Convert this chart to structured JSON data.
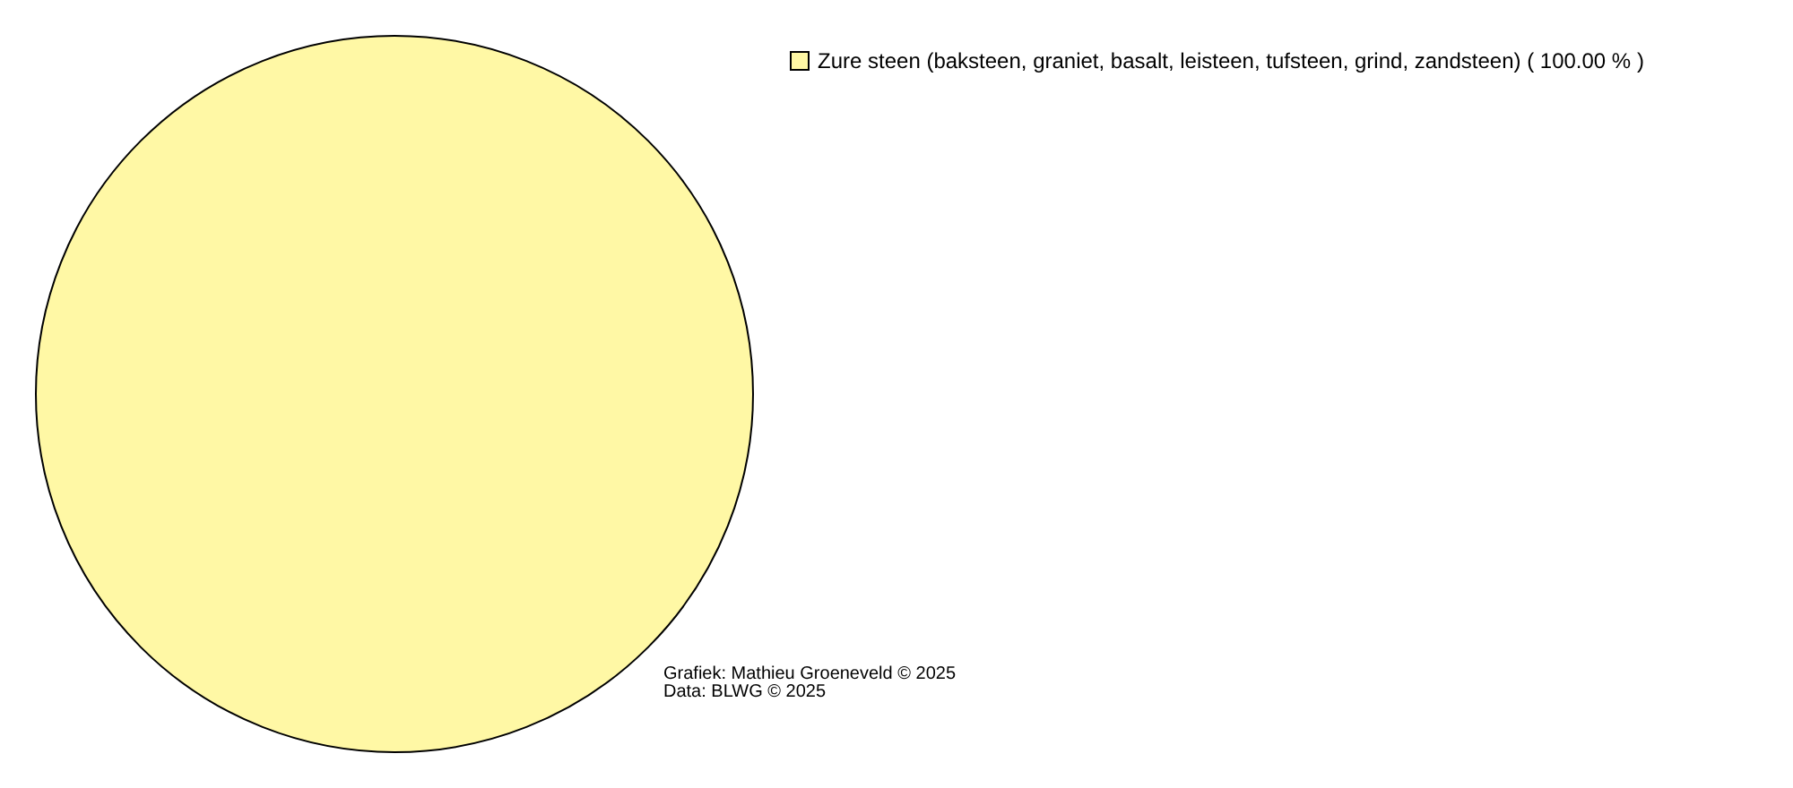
{
  "chart_data": {
    "type": "pie",
    "categories": [
      "Zure steen (baksteen, graniet, basalt, leisteen, tufsteen, grind, zandsteen)"
    ],
    "values": [
      100
    ],
    "value_labels": [
      "( 100.00 % )"
    ],
    "colors": [
      "#fff8a5"
    ],
    "legend": "top right",
    "annotations": [
      "Grafiek: Mathieu Groeneveld © 2025",
      "Data: BLWG © 2025"
    ]
  }
}
